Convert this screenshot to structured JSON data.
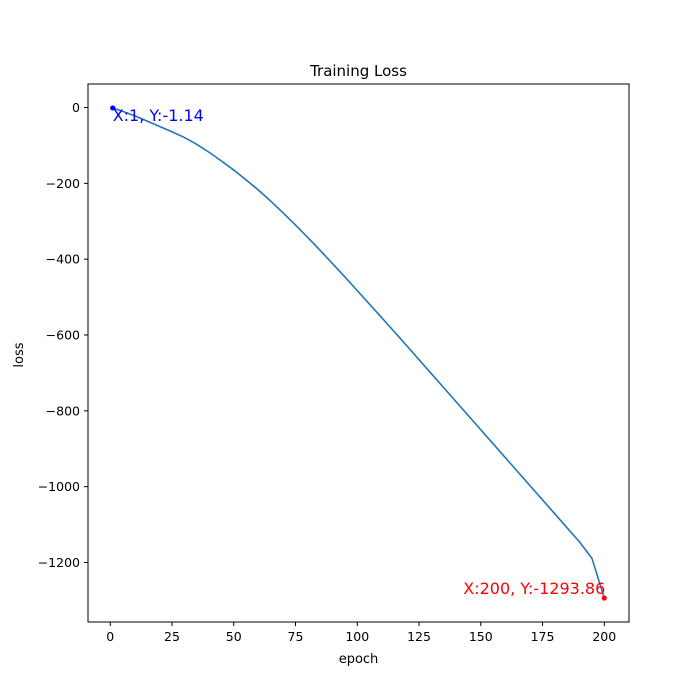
{
  "chart_data": {
    "type": "line",
    "title": "Training Loss",
    "xlabel": "epoch",
    "ylabel": "loss",
    "xlim": [
      -9,
      210
    ],
    "ylim": [
      -1357,
      62
    ],
    "grid": false,
    "x_ticks": [
      0,
      25,
      50,
      75,
      100,
      125,
      150,
      175,
      200
    ],
    "y_ticks": [
      0,
      -200,
      -400,
      -600,
      -800,
      -1000,
      -1200
    ],
    "x_tick_labels": [
      "0",
      "25",
      "50",
      "75",
      "100",
      "125",
      "150",
      "175",
      "200"
    ],
    "y_tick_labels": [
      "0",
      "−200",
      "−400",
      "−600",
      "−800",
      "−1000",
      "−1200"
    ],
    "series": [
      {
        "color": "#1f77b4",
        "x": [
          1,
          5,
          10,
          15,
          20,
          25,
          30,
          35,
          40,
          45,
          50,
          55,
          60,
          65,
          70,
          75,
          80,
          85,
          90,
          95,
          100,
          110,
          120,
          130,
          140,
          150,
          160,
          170,
          180,
          190,
          195,
          200
        ],
        "y": [
          -1.14,
          -10,
          -22,
          -36,
          -50,
          -64,
          -79,
          -97,
          -118,
          -141,
          -165,
          -191,
          -218,
          -247,
          -278,
          -310,
          -343,
          -377,
          -412,
          -447,
          -483,
          -555,
          -628,
          -702,
          -776,
          -850,
          -924,
          -998,
          -1072,
          -1146,
          -1189,
          -1293.86
        ]
      }
    ],
    "annotations": [
      {
        "text": "X:1, Y:-1.14",
        "x": 1,
        "y": -1.14,
        "color": "#0000ff",
        "align": "start"
      },
      {
        "text": "X:200, Y:-1293.86",
        "x": 200,
        "y": -1293.86,
        "color": "#ff0000",
        "align": "end"
      }
    ]
  }
}
